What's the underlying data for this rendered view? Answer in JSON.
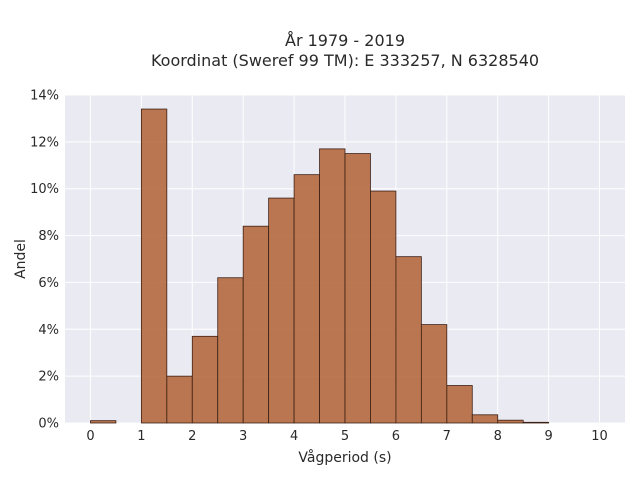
{
  "chart_data": {
    "type": "bar",
    "title_line1": "År 1979 - 2019",
    "title_line2": "Koordinat (Sweref 99 TM): E 333257, N 6328540",
    "xlabel": "Vågperiod (s)",
    "ylabel": "Andel",
    "xlim": [
      -0.5,
      10.5
    ],
    "ylim": [
      0,
      14
    ],
    "xticks": [
      0,
      1,
      2,
      3,
      4,
      5,
      6,
      7,
      8,
      9,
      10
    ],
    "yticks": [
      0,
      2,
      4,
      6,
      8,
      10,
      12,
      14
    ],
    "ytick_labels": [
      "0%",
      "2%",
      "4%",
      "6%",
      "8%",
      "10%",
      "12%",
      "14%"
    ],
    "grid": true,
    "bin_width": 0.5,
    "bins": [
      {
        "x0": 0.0,
        "value": 0.1
      },
      {
        "x0": 1.0,
        "value": 13.4
      },
      {
        "x0": 1.5,
        "value": 2.0
      },
      {
        "x0": 2.0,
        "value": 3.7
      },
      {
        "x0": 2.5,
        "value": 6.2
      },
      {
        "x0": 3.0,
        "value": 8.4
      },
      {
        "x0": 3.5,
        "value": 9.6
      },
      {
        "x0": 4.0,
        "value": 10.6
      },
      {
        "x0": 4.5,
        "value": 11.7
      },
      {
        "x0": 5.0,
        "value": 11.5
      },
      {
        "x0": 5.5,
        "value": 9.9
      },
      {
        "x0": 6.0,
        "value": 7.1
      },
      {
        "x0": 6.5,
        "value": 4.2
      },
      {
        "x0": 7.0,
        "value": 1.6
      },
      {
        "x0": 7.5,
        "value": 0.35
      },
      {
        "x0": 8.0,
        "value": 0.12
      },
      {
        "x0": 8.5,
        "value": 0.03
      }
    ],
    "colors": {
      "bar_fill": "#b5693e",
      "bar_stroke": "#3d2014",
      "plot_bg": "#eaeaf2",
      "grid": "#ffffff"
    }
  }
}
